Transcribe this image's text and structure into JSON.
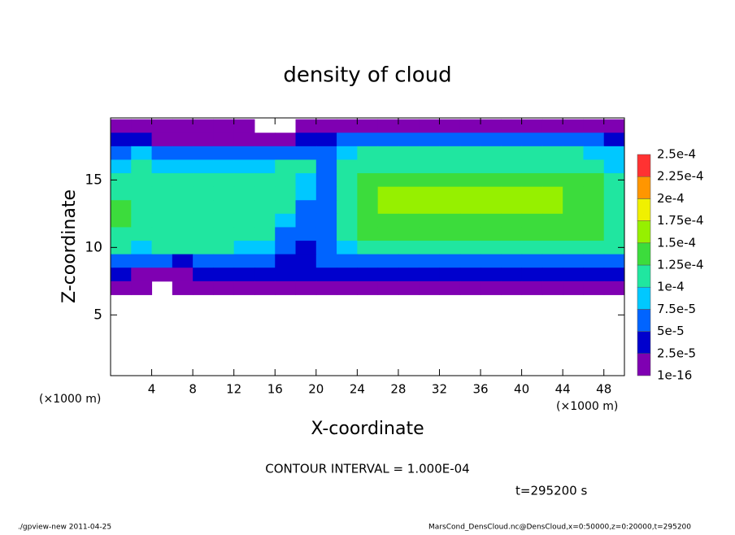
{
  "chart_data": {
    "type": "heatmap",
    "title": "density of cloud",
    "xlabel": "X-coordinate",
    "ylabel": "Z-coordinate",
    "x_unit": "(×1000 m)",
    "annotation": "CONTOUR INTERVAL = 1.000E-04",
    "time_label": "t=295200 s",
    "footer_left": "./gpview-new  2011-04-25",
    "footer_right": "MarsCond_DensCloud.nc@DensCloud,x=0:50000,z=0:20000,t=295200",
    "xlim": [
      0,
      50
    ],
    "xticks": [
      4,
      8,
      12,
      16,
      20,
      24,
      28,
      32,
      36,
      40,
      44,
      48
    ],
    "ylim": [
      0.5,
      19.6
    ],
    "yticks": [
      5,
      10,
      15
    ],
    "x": [
      1,
      3,
      5,
      7,
      9,
      11,
      13,
      15,
      17,
      19,
      21,
      23,
      25,
      27,
      29,
      31,
      33,
      35,
      37,
      39,
      41,
      43,
      45,
      47,
      49
    ],
    "z": [
      19,
      18,
      17,
      16,
      15,
      14,
      13,
      12,
      11,
      10,
      9,
      8,
      7
    ],
    "values": [
      [
        1e-05,
        1e-05,
        5e-06,
        5e-06,
        1e-05,
        1e-05,
        5e-06,
        null,
        null,
        1e-05,
        1e-05,
        5e-06,
        5e-06,
        5e-06,
        1e-05,
        1e-05,
        1e-05,
        1e-05,
        1e-05,
        1e-05,
        1e-05,
        1e-05,
        1e-05,
        1e-05,
        1e-05
      ],
      [
        4e-05,
        3e-05,
        2e-05,
        2e-05,
        2e-05,
        2e-05,
        2e-05,
        2e-05,
        2e-05,
        3e-05,
        4e-05,
        5e-05,
        5e-05,
        5e-05,
        5e-05,
        5e-05,
        5e-05,
        5e-05,
        5e-05,
        5e-05,
        5e-05,
        5e-05,
        5e-05,
        5e-05,
        4e-05
      ],
      [
        7e-05,
        8e-05,
        6e-05,
        5e-05,
        5e-05,
        5e-05,
        5e-05,
        5e-05,
        6e-05,
        7e-05,
        7e-05,
        9e-05,
        0.0001,
        0.0001,
        0.0001,
        0.0001,
        0.0001,
        0.0001,
        0.0001,
        0.0001,
        0.0001,
        0.0001,
        0.0001,
        9e-05,
        8e-05
      ],
      [
        9e-05,
        0.00011,
        8e-05,
        8e-05,
        8e-05,
        9e-05,
        9e-05,
        9e-05,
        0.0001,
        0.0001,
        7e-05,
        0.00011,
        0.00012,
        0.00012,
        0.00012,
        0.00012,
        0.00012,
        0.00012,
        0.00012,
        0.00012,
        0.00012,
        0.00012,
        0.00012,
        0.00011,
        9e-05
      ],
      [
        0.0001,
        0.00011,
        0.00011,
        0.00011,
        0.00011,
        0.00011,
        0.00011,
        0.00011,
        0.0001,
        9e-05,
        7e-05,
        0.00012,
        0.00014,
        0.00014,
        0.00014,
        0.00014,
        0.00014,
        0.00014,
        0.00014,
        0.00014,
        0.00014,
        0.00014,
        0.00014,
        0.00013,
        0.0001
      ],
      [
        0.00012,
        0.00011,
        0.00012,
        0.00012,
        0.00012,
        0.00012,
        0.00012,
        0.00011,
        0.0001,
        8e-05,
        7e-05,
        0.00012,
        0.00014,
        0.00015,
        0.00015,
        0.00015,
        0.00015,
        0.00015,
        0.00015,
        0.00015,
        0.00015,
        0.00015,
        0.00014,
        0.00013,
        0.0001
      ],
      [
        0.00013,
        0.00011,
        0.00012,
        0.00012,
        0.00012,
        0.00012,
        0.00012,
        0.00012,
        0.0001,
        7e-05,
        6e-05,
        0.00012,
        0.00014,
        0.00015,
        0.00015,
        0.00015,
        0.00015,
        0.00015,
        0.00015,
        0.00015,
        0.00015,
        0.00015,
        0.00014,
        0.00013,
        0.00011
      ],
      [
        0.00014,
        0.00011,
        0.00011,
        0.00012,
        0.00012,
        0.00012,
        0.00012,
        0.00012,
        9e-05,
        6e-05,
        6e-05,
        0.00011,
        0.00014,
        0.00014,
        0.00014,
        0.00014,
        0.00014,
        0.00014,
        0.00014,
        0.00014,
        0.00014,
        0.00014,
        0.00014,
        0.00013,
        0.00011
      ],
      [
        0.00012,
        0.0001,
        0.00011,
        0.00011,
        0.00011,
        0.00011,
        0.00011,
        0.0001,
        7e-05,
        5e-05,
        6e-05,
        0.0001,
        0.00013,
        0.00013,
        0.00013,
        0.00013,
        0.00013,
        0.00013,
        0.00013,
        0.00013,
        0.00013,
        0.00013,
        0.00013,
        0.00013,
        0.00011
      ],
      [
        0.0001,
        9e-05,
        0.0001,
        0.0001,
        0.0001,
        0.0001,
        9e-05,
        8e-05,
        5e-05,
        4e-05,
        6e-05,
        9e-05,
        0.00012,
        0.00012,
        0.00012,
        0.00012,
        0.00012,
        0.00012,
        0.00012,
        0.00012,
        0.00012,
        0.00012,
        0.00012,
        0.00012,
        0.0001
      ],
      [
        6e-05,
        5e-05,
        5e-05,
        4e-05,
        6e-05,
        6e-05,
        6e-05,
        5e-05,
        4e-05,
        4e-05,
        5e-05,
        6e-05,
        7e-05,
        7e-05,
        7e-05,
        7e-05,
        7e-05,
        7e-05,
        7e-05,
        7e-05,
        7e-05,
        7e-05,
        7e-05,
        7e-05,
        6e-05
      ],
      [
        3e-05,
        2e-05,
        1e-05,
        2e-05,
        3e-05,
        3e-05,
        3e-05,
        3e-05,
        3e-05,
        3e-05,
        3e-05,
        3e-05,
        4e-05,
        4e-05,
        4e-05,
        4e-05,
        4e-05,
        4e-05,
        4e-05,
        4e-05,
        4e-05,
        4e-05,
        4e-05,
        4e-05,
        3e-05
      ],
      [
        1e-05,
        1e-05,
        null,
        1e-05,
        1e-05,
        5e-06,
        1e-05,
        5e-06,
        1e-05,
        1e-05,
        1e-05,
        1e-05,
        1e-05,
        1e-05,
        1e-05,
        1e-05,
        1e-05,
        1e-05,
        1e-05,
        1e-05,
        5e-06,
        1e-05,
        1e-05,
        1e-05,
        1e-05
      ]
    ],
    "colorbar_ticks": [
      1e-16,
      {
        "value": 2.5e-05,
        "label": "2.5e-5"
      },
      {
        "value": 5e-05,
        "label": "5e-5"
      },
      {
        "value": 7.5e-05,
        "label": "7.5e-5"
      },
      {
        "value": 0.0001,
        "label": "1e-4"
      },
      {
        "value": 0.000125,
        "label": "1.25e-4"
      },
      {
        "value": 0.00015,
        "label": "1.5e-4"
      },
      {
        "value": 0.000175,
        "label": "1.75e-4"
      },
      {
        "value": 0.0002,
        "label": "2e-4"
      },
      {
        "value": 0.000225,
        "label": "2.25e-4"
      },
      {
        "value": 0.00025,
        "label": "2.5e-4"
      }
    ],
    "colors": [
      "#7f00b2",
      "#0000cd",
      "#0064ff",
      "#00c8ff",
      "#20e6a0",
      "#3cdc3c",
      "#96f000",
      "#f0f000",
      "#ff9600",
      "#ff3232"
    ]
  }
}
